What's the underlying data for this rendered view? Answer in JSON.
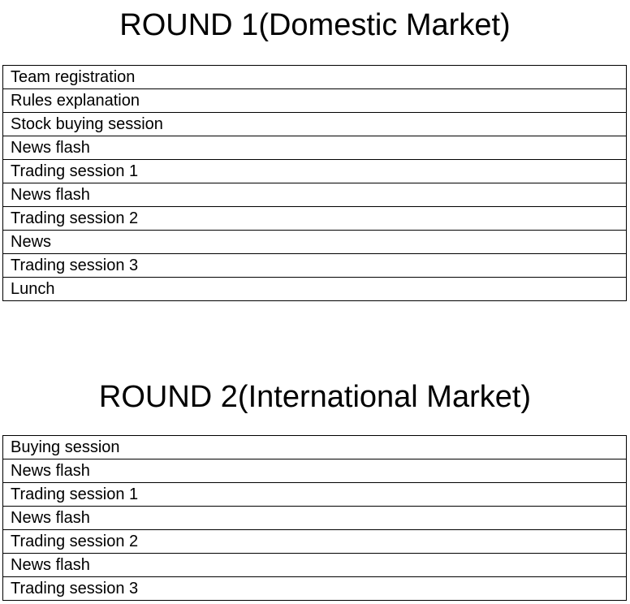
{
  "round1": {
    "title": "ROUND 1(Domestic Market)",
    "rows": [
      "Team registration",
      "Rules explanation",
      "Stock buying session",
      "News flash",
      "Trading session 1",
      "News flash",
      "Trading session 2",
      "News",
      "Trading session 3",
      "Lunch"
    ]
  },
  "round2": {
    "title": "ROUND 2(International Market)",
    "rows": [
      "Buying session",
      "News flash",
      "Trading session 1",
      "News flash",
      "Trading session 2",
      "News flash",
      "Trading session 3"
    ]
  }
}
